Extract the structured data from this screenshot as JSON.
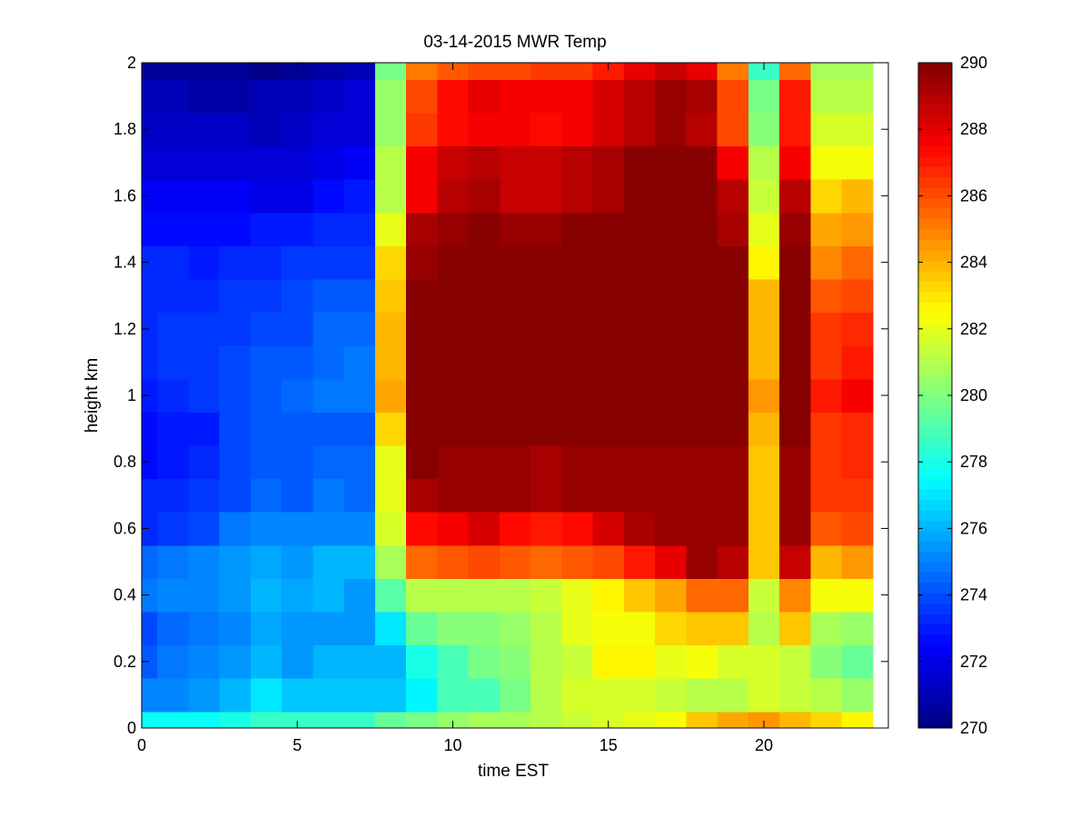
{
  "chart_data": {
    "type": "heatmap",
    "title": "03-14-2015 MWR Temp",
    "xlabel": "time EST",
    "ylabel": "height km",
    "xlim": [
      0,
      24
    ],
    "ylim": [
      0,
      2
    ],
    "x_ticks": [
      0,
      5,
      10,
      15,
      20
    ],
    "y_ticks": [
      0,
      0.2,
      0.4,
      0.6,
      0.8,
      1,
      1.2,
      1.4,
      1.6,
      1.8,
      2
    ],
    "x_edges": [
      0,
      0.5,
      1.5,
      2.5,
      3.5,
      4.5,
      5.5,
      6.5,
      7.5,
      8.5,
      9.5,
      10.5,
      11.5,
      12.5,
      13.5,
      14.5,
      15.5,
      16.5,
      17.5,
      18.5,
      19.5,
      20.5,
      21.5,
      22.5,
      23.5
    ],
    "y_edges": [
      0,
      0.05,
      0.15,
      0.25,
      0.35,
      0.45,
      0.55,
      0.65,
      0.75,
      0.85,
      0.95,
      1.05,
      1.15,
      1.25,
      1.35,
      1.45,
      1.55,
      1.65,
      1.75,
      1.85,
      1.95,
      2.0
    ],
    "colormap": "jet",
    "colorbar": {
      "min": 270,
      "max": 290,
      "ticks": [
        270,
        272,
        274,
        276,
        278,
        280,
        282,
        284,
        286,
        288,
        290
      ],
      "levels": 64
    },
    "z": [
      [
        277.6,
        277.6,
        277.6,
        277.9,
        278.5,
        278.5,
        278.5,
        278.5,
        279.4,
        279.7,
        280.6,
        280.9,
        280.9,
        281.2,
        281.5,
        281.8,
        282.1,
        282.4,
        283.6,
        284.2,
        284.5,
        283.9,
        283.3,
        282.7
      ],
      [
        275.0,
        275.3,
        275.6,
        276.2,
        277.0,
        276.5,
        276.5,
        276.5,
        276.5,
        277.3,
        278.8,
        278.8,
        279.7,
        281.2,
        281.8,
        281.8,
        281.8,
        281.5,
        281.2,
        281.2,
        281.8,
        281.5,
        281.2,
        280.6
      ],
      [
        274.1,
        274.7,
        275.0,
        275.6,
        276.2,
        275.6,
        276.2,
        276.2,
        276.2,
        277.9,
        278.8,
        279.7,
        280.3,
        281.2,
        281.5,
        282.7,
        282.7,
        282.1,
        282.4,
        281.8,
        281.8,
        281.5,
        280.0,
        279.4
      ],
      [
        273.8,
        274.4,
        274.7,
        275.3,
        275.9,
        275.6,
        275.6,
        275.6,
        277.0,
        279.4,
        280.3,
        280.3,
        280.6,
        281.2,
        282.1,
        282.4,
        282.4,
        283.3,
        283.6,
        283.6,
        281.2,
        283.6,
        280.9,
        280.6
      ],
      [
        274.7,
        275.3,
        275.3,
        275.6,
        276.2,
        275.9,
        276.2,
        275.6,
        279.1,
        281.2,
        281.2,
        281.2,
        281.2,
        281.5,
        282.1,
        282.7,
        283.6,
        284.2,
        285.4,
        285.4,
        281.5,
        284.8,
        282.4,
        282.4
      ],
      [
        274.4,
        274.7,
        275.0,
        275.6,
        275.9,
        275.6,
        276.2,
        276.2,
        280.9,
        285.4,
        285.9,
        286.2,
        285.7,
        285.4,
        285.7,
        286.2,
        287.1,
        288.0,
        289.5,
        288.9,
        283.6,
        288.6,
        283.9,
        284.5
      ],
      [
        273.2,
        273.5,
        273.8,
        274.7,
        275.3,
        275.0,
        275.3,
        275.0,
        281.8,
        287.4,
        287.7,
        288.3,
        287.4,
        287.1,
        287.4,
        288.3,
        289.2,
        289.5,
        289.5,
        289.5,
        283.6,
        289.5,
        285.7,
        286.0
      ],
      [
        273.2,
        273.2,
        273.5,
        273.8,
        274.4,
        274.1,
        274.7,
        274.4,
        282.1,
        289.2,
        289.5,
        289.5,
        289.5,
        289.2,
        289.5,
        289.5,
        289.5,
        289.5,
        289.5,
        289.5,
        283.6,
        289.5,
        286.5,
        286.5
      ],
      [
        272.6,
        272.9,
        273.2,
        273.8,
        274.1,
        274.1,
        274.4,
        274.4,
        282.1,
        289.8,
        289.5,
        289.5,
        289.5,
        289.2,
        289.5,
        289.5,
        289.5,
        289.5,
        289.5,
        289.5,
        283.6,
        289.5,
        286.5,
        286.8
      ],
      [
        272.6,
        272.9,
        272.9,
        273.8,
        274.1,
        274.1,
        274.1,
        274.1,
        283.3,
        289.8,
        289.8,
        289.8,
        289.8,
        289.8,
        289.8,
        289.8,
        289.8,
        289.8,
        289.8,
        289.8,
        283.9,
        289.8,
        286.5,
        286.8
      ],
      [
        272.9,
        273.2,
        273.5,
        273.8,
        274.1,
        274.4,
        274.7,
        274.7,
        284.2,
        289.8,
        289.8,
        289.8,
        289.8,
        289.8,
        289.8,
        289.8,
        289.8,
        289.8,
        289.8,
        289.8,
        284.5,
        289.8,
        287.1,
        287.7
      ],
      [
        273.2,
        273.5,
        273.5,
        273.8,
        274.1,
        274.1,
        274.4,
        274.7,
        283.9,
        289.8,
        289.8,
        289.8,
        289.8,
        289.8,
        289.8,
        289.8,
        289.8,
        289.8,
        289.8,
        289.8,
        283.9,
        289.8,
        286.5,
        287.1
      ],
      [
        273.2,
        273.5,
        273.5,
        273.5,
        273.8,
        273.8,
        274.4,
        274.4,
        283.9,
        289.8,
        289.8,
        289.8,
        289.8,
        289.8,
        289.8,
        289.8,
        289.8,
        289.8,
        289.8,
        289.8,
        283.9,
        289.8,
        286.5,
        286.8
      ],
      [
        273.2,
        273.2,
        273.2,
        273.5,
        273.5,
        273.8,
        274.1,
        274.1,
        283.6,
        289.8,
        289.8,
        289.8,
        289.8,
        289.8,
        289.8,
        289.8,
        289.8,
        289.8,
        289.8,
        289.8,
        283.9,
        289.8,
        285.7,
        286.2
      ],
      [
        273.2,
        273.2,
        272.9,
        273.2,
        273.2,
        273.5,
        273.5,
        273.5,
        283.3,
        289.5,
        289.8,
        289.8,
        289.8,
        289.8,
        289.8,
        289.8,
        289.8,
        289.8,
        289.8,
        289.8,
        282.7,
        289.8,
        284.8,
        285.4
      ],
      [
        272.6,
        272.6,
        272.6,
        272.6,
        272.9,
        272.9,
        273.2,
        273.2,
        282.1,
        289.2,
        289.5,
        289.8,
        289.5,
        289.5,
        289.8,
        289.8,
        289.8,
        289.8,
        289.8,
        289.2,
        282.1,
        289.5,
        284.2,
        284.5
      ],
      [
        272.3,
        272.3,
        272.3,
        272.3,
        272.0,
        272.0,
        272.6,
        272.9,
        281.2,
        287.7,
        288.9,
        289.2,
        288.6,
        288.6,
        288.9,
        289.2,
        289.8,
        289.8,
        289.8,
        288.9,
        281.5,
        288.9,
        283.3,
        283.9
      ],
      [
        271.7,
        271.7,
        271.7,
        271.7,
        271.7,
        271.7,
        272.0,
        272.3,
        281.2,
        287.7,
        288.6,
        288.9,
        288.6,
        288.6,
        288.9,
        289.2,
        289.8,
        289.8,
        289.8,
        287.7,
        281.2,
        287.7,
        282.4,
        282.4
      ],
      [
        271.4,
        271.4,
        271.4,
        271.4,
        271.1,
        271.4,
        271.7,
        271.7,
        280.6,
        286.5,
        287.4,
        287.7,
        287.7,
        287.4,
        287.7,
        288.3,
        288.9,
        289.5,
        288.9,
        286.2,
        280.3,
        287.1,
        281.8,
        281.8
      ],
      [
        271.1,
        271.1,
        270.8,
        270.8,
        271.1,
        271.1,
        271.4,
        271.7,
        280.6,
        286.2,
        287.4,
        288.0,
        287.7,
        287.7,
        287.7,
        288.3,
        288.9,
        289.5,
        289.2,
        286.2,
        279.7,
        287.1,
        281.2,
        281.2
      ],
      [
        270.5,
        270.5,
        270.5,
        270.5,
        270.2,
        270.5,
        270.8,
        271.1,
        279.7,
        285.1,
        285.7,
        286.2,
        286.2,
        286.5,
        286.5,
        287.1,
        288.0,
        288.6,
        288.0,
        285.1,
        278.5,
        285.4,
        280.9,
        280.9
      ]
    ]
  }
}
